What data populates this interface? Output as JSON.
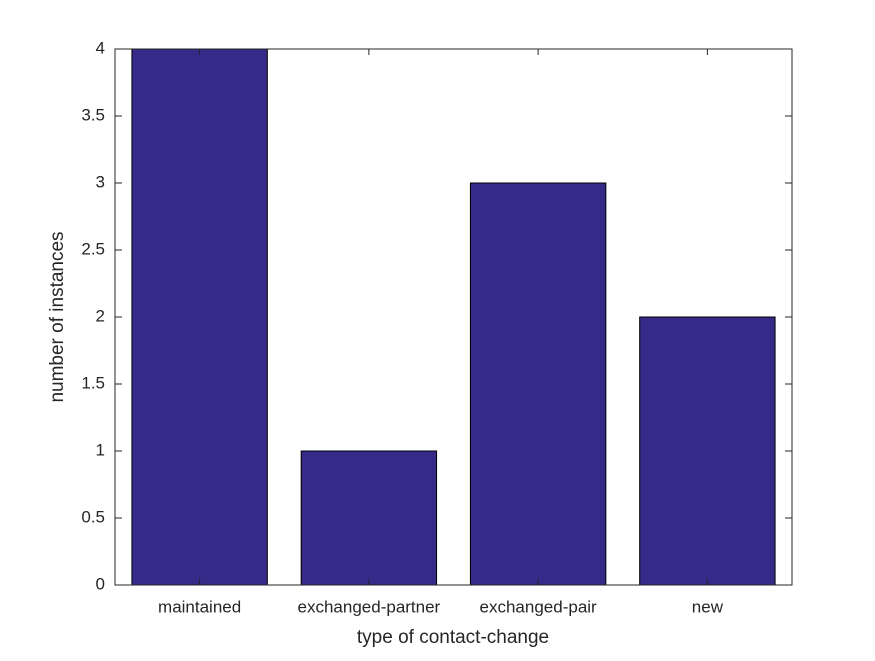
{
  "chart_data": {
    "type": "bar",
    "x_label": "type of contact-change",
    "y_label": "number of instances",
    "categories": [
      "maintained",
      "exchanged-partner",
      "exchanged-pair",
      "new"
    ],
    "values": [
      4,
      1,
      3,
      2
    ],
    "color": "#352a87",
    "ylim": [
      0,
      4
    ],
    "yticks": [
      0,
      0.5,
      1,
      1.5,
      2,
      2.5,
      3,
      3.5,
      4
    ],
    "grid": false
  }
}
